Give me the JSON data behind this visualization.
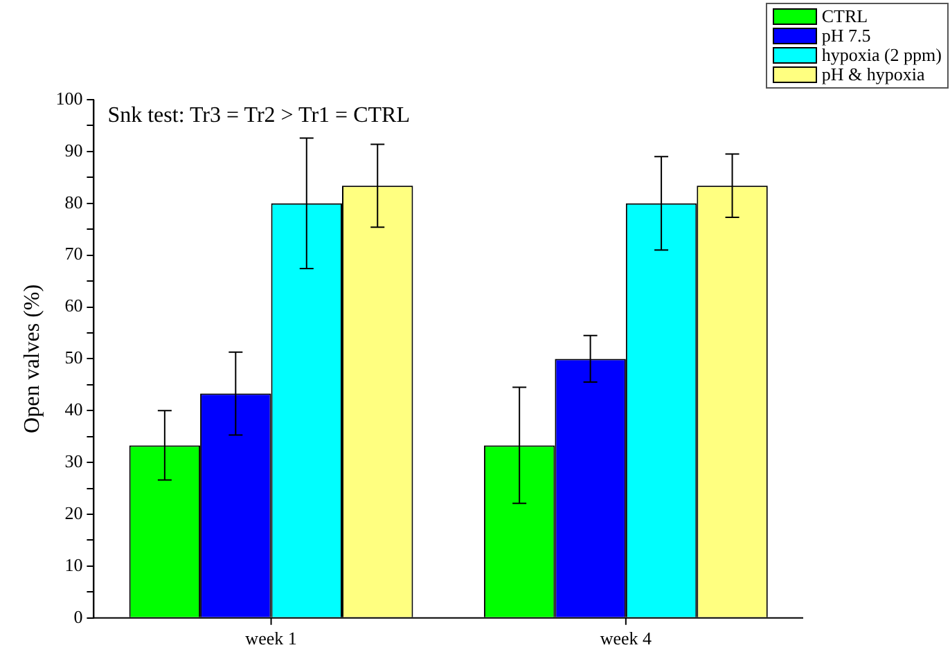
{
  "chart_data": {
    "type": "bar",
    "ylabel": "Open valves (%)",
    "annotations": [
      "Snk test: Tr3 = Tr2 > Tr1 = CTRL"
    ],
    "categories": [
      "week 1",
      "week 4"
    ],
    "series": [
      {
        "name": "CTRL",
        "color": "#00ff00",
        "values": [
          33.3,
          33.3
        ],
        "errors": [
          6.7,
          11.2
        ]
      },
      {
        "name": "pH 7.5",
        "color": "#0000ff",
        "values": [
          43.3,
          50.0
        ],
        "errors": [
          8,
          4.5
        ]
      },
      {
        "name": "hypoxia (2 ppm)",
        "color": "#00ffff",
        "values": [
          80,
          80
        ],
        "errors": [
          12.6,
          9
        ]
      },
      {
        "name": "pH & hypoxia",
        "color": "#ffff80",
        "values": [
          83.4,
          83.4
        ],
        "errors": [
          8,
          6.1
        ]
      }
    ],
    "ylim": [
      0,
      100
    ],
    "yticks": [
      0,
      {
        "value": 5,
        "label": null
      },
      10,
      {
        "value": 15,
        "label": null
      },
      20,
      {
        "value": 25,
        "label": null
      },
      30,
      {
        "value": 35,
        "label": null
      },
      40,
      {
        "value": 45,
        "label": null
      },
      50,
      {
        "value": 55,
        "label": null
      },
      60,
      {
        "value": 65,
        "label": null
      },
      70,
      {
        "value": 75,
        "label": null
      },
      80,
      {
        "value": 85,
        "label": null
      },
      90,
      {
        "value": 95,
        "label": null
      },
      100
    ],
    "grid": false,
    "legend": "top right"
  }
}
